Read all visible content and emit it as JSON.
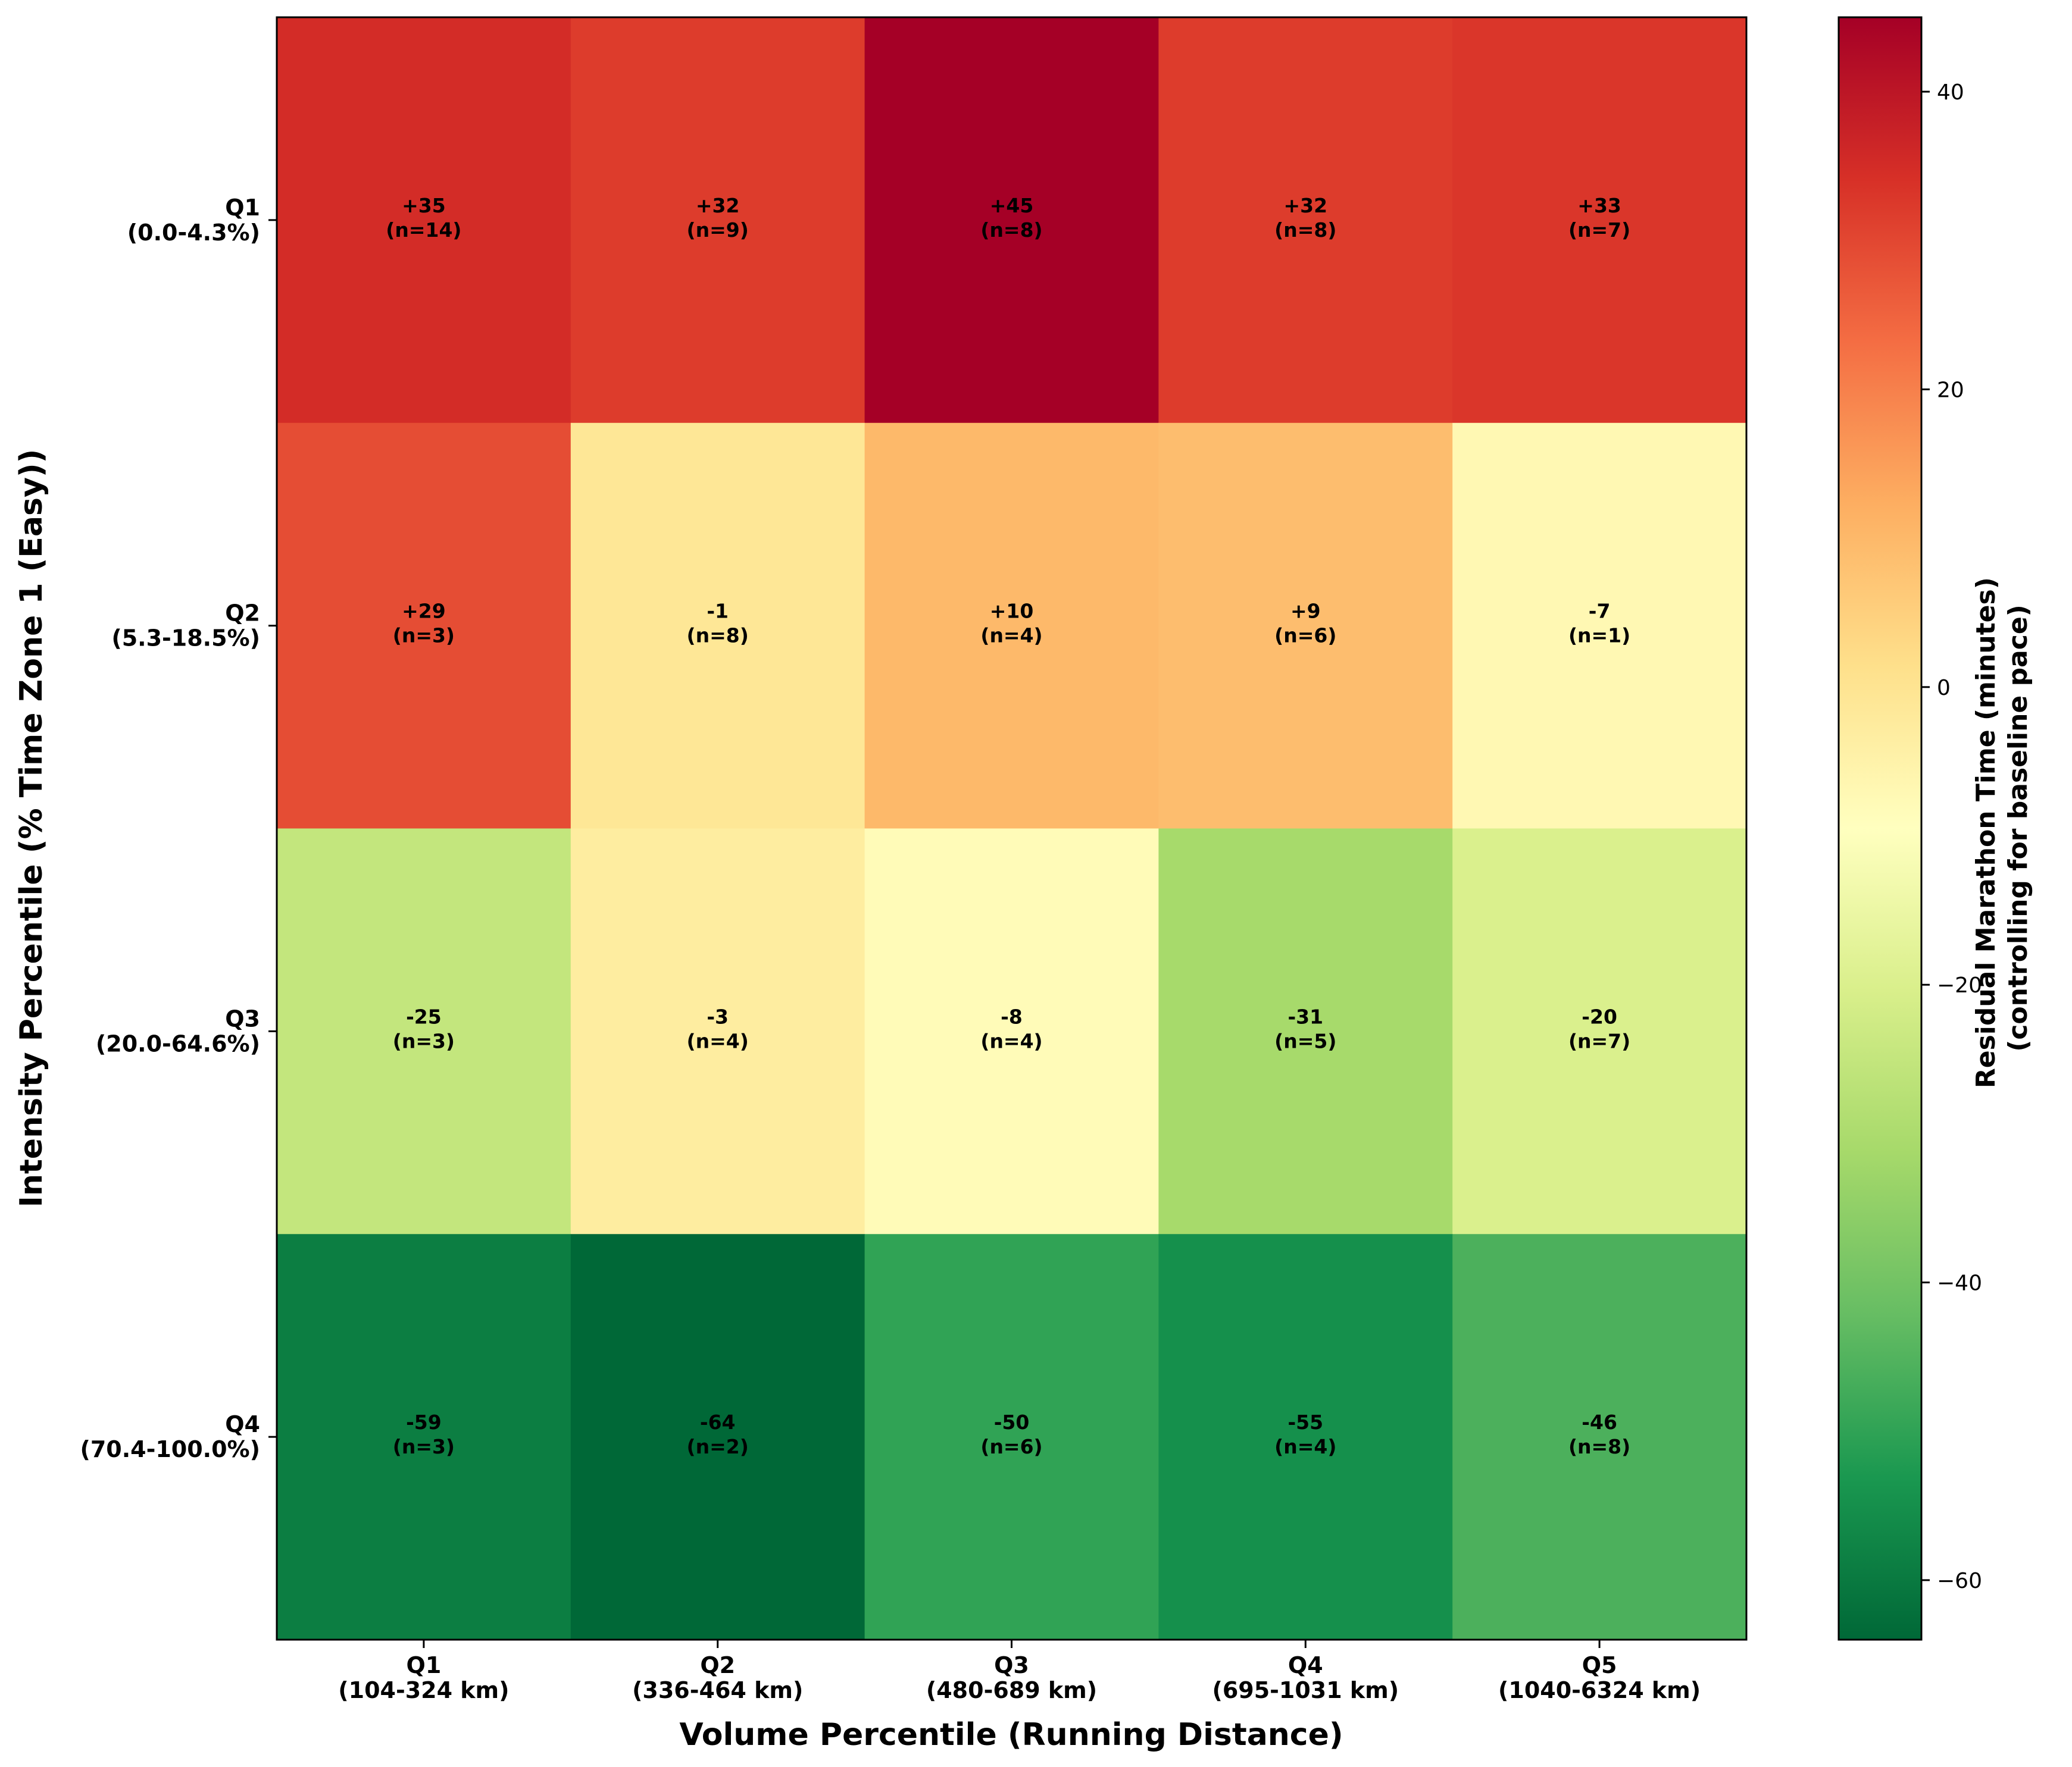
{
  "chart_data": {
    "type": "heatmap",
    "xlabel": "Volume Percentile (Running Distance)",
    "ylabel": "Intensity Percentile (% Time Zone 1 (Easy))",
    "x_categories": [
      {
        "name": "Q1",
        "range": "(104-324 km)"
      },
      {
        "name": "Q2",
        "range": "(336-464 km)"
      },
      {
        "name": "Q3",
        "range": "(480-689 km)"
      },
      {
        "name": "Q4",
        "range": "(695-1031 km)"
      },
      {
        "name": "Q5",
        "range": "(1040-6324 km)"
      }
    ],
    "y_categories": [
      {
        "name": "Q1",
        "range": "(0.0-4.3%)"
      },
      {
        "name": "Q2",
        "range": "(5.3-18.5%)"
      },
      {
        "name": "Q3",
        "range": "(20.0-64.6%)"
      },
      {
        "name": "Q4",
        "range": "(70.4-100.0%)"
      }
    ],
    "values": [
      [
        35,
        32,
        45,
        32,
        33
      ],
      [
        29,
        -1,
        10,
        9,
        -7
      ],
      [
        -25,
        -3,
        -8,
        -31,
        -20
      ],
      [
        -59,
        -64,
        -50,
        -55,
        -46
      ]
    ],
    "value_labels": [
      [
        "+35",
        "+32",
        "+45",
        "+32",
        "+33"
      ],
      [
        "+29",
        "-1",
        "+10",
        "+9",
        "-7"
      ],
      [
        "-25",
        "-3",
        "-8",
        "-31",
        "-20"
      ],
      [
        "-59",
        "-64",
        "-50",
        "-55",
        "-46"
      ]
    ],
    "counts": [
      [
        "(n=14)",
        "(n=9)",
        "(n=8)",
        "(n=8)",
        "(n=7)"
      ],
      [
        "(n=3)",
        "(n=8)",
        "(n=4)",
        "(n=6)",
        "(n=1)"
      ],
      [
        "(n=3)",
        "(n=4)",
        "(n=4)",
        "(n=5)",
        "(n=7)"
      ],
      [
        "(n=3)",
        "(n=2)",
        "(n=6)",
        "(n=4)",
        "(n=8)"
      ]
    ],
    "colorbar": {
      "label_lines": [
        "Residual Marathon Time (minutes)",
        "(controlling for baseline pace)"
      ],
      "range": [
        -64,
        45
      ],
      "ticks": [
        40,
        20,
        0,
        -20,
        -40,
        -60
      ],
      "tick_labels": [
        "40",
        "20",
        "0",
        "−20",
        "−40",
        "−60"
      ],
      "colormap": "RdYlGn_r",
      "colormap_stops": [
        "#006837",
        "#1a9850",
        "#66bd63",
        "#a6d96a",
        "#d9ef8b",
        "#ffffbf",
        "#fee08b",
        "#fdae61",
        "#f46d43",
        "#d73027",
        "#a50026"
      ]
    },
    "grid": false
  }
}
